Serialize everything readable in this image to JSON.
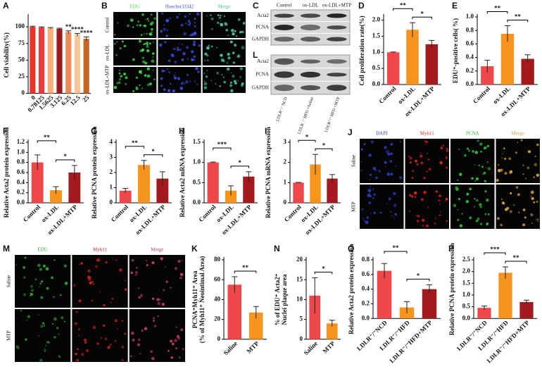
{
  "chart_data": [
    {
      "type": "bar",
      "label": "A",
      "ylabel": [
        "Cell viability(%)"
      ],
      "categories": [
        "0",
        "0.78125",
        "1.5625",
        "3.125",
        "6.25",
        "12.5",
        "25"
      ],
      "values": [
        100,
        99,
        98,
        97,
        92,
        88,
        82
      ],
      "errors": [
        1,
        1,
        1,
        1,
        2,
        2,
        3
      ],
      "colors": [
        "#e8332f",
        "#ee3a3a",
        "#f7b07a",
        "#9d1b1c",
        "#f08a55",
        "#f7c69a",
        "#c7641f"
      ],
      "ylim": [
        0,
        115
      ],
      "yticks": [
        0,
        25,
        50,
        75,
        100
      ],
      "annotations": [
        "**",
        "****",
        "****"
      ]
    },
    {
      "type": "bar",
      "label": "D",
      "ylabel": [
        "Cell proliferation rate(%)"
      ],
      "categories": [
        "Control",
        "ox-LDL",
        "ox-LDL+MTP"
      ],
      "values": [
        1.0,
        1.7,
        1.25
      ],
      "errors": [
        0.01,
        0.22,
        0.12
      ],
      "colors": [
        "#f0474a",
        "#f7941d",
        "#a31a1e"
      ],
      "ylim": [
        0,
        2.1
      ],
      "yticks": [
        {
          "value": 0,
          "label": "0.0"
        },
        0.5,
        {
          "value": 1,
          "label": "1.0"
        },
        1.5,
        {
          "value": 2,
          "label": "2.0"
        }
      ],
      "annotations": [
        "**",
        "*"
      ]
    },
    {
      "type": "bar",
      "label": "E",
      "ylabel": [
        "EDU⁺-positive cells( %)"
      ],
      "categories": [
        "Control",
        "ox-LDL",
        "ox-LDL+MTP"
      ],
      "values": [
        0.27,
        0.75,
        0.38
      ],
      "errors": [
        0.09,
        0.12,
        0.06
      ],
      "colors": [
        "#f0474a",
        "#f7941d",
        "#a31a1e"
      ],
      "ylim": [
        0,
        1.0
      ],
      "yticks": [
        {
          "value": 0,
          "label": "0.0"
        },
        0.2,
        0.4,
        0.6,
        0.8,
        {
          "value": 1,
          "label": "1.0"
        }
      ],
      "annotations": [
        "**",
        "**"
      ]
    },
    {
      "type": "bar",
      "label": "F",
      "ylabel": [
        "Relative Acta2 protein expression"
      ],
      "categories": [
        "Control",
        "ox-LDL",
        "ox-LDL+MTP"
      ],
      "values": [
        0.8,
        0.25,
        0.6
      ],
      "errors": [
        0.15,
        0.07,
        0.14
      ],
      "colors": [
        "#f0474a",
        "#f7941d",
        "#a31a1e"
      ],
      "ylim": [
        0,
        1.2
      ],
      "yticks": [
        {
          "value": 0,
          "label": "0.0"
        },
        0.2,
        0.4,
        0.6,
        0.8,
        {
          "value": 1,
          "label": "1.0"
        },
        1.2
      ],
      "annotations": [
        "**",
        "*"
      ]
    },
    {
      "type": "bar",
      "label": "G",
      "ylabel": [
        "Relative PCNA protein expression"
      ],
      "categories": [
        "Control",
        "ox-LDL",
        "ox-LDL+MTP"
      ],
      "values": [
        0.8,
        2.5,
        1.6
      ],
      "errors": [
        0.15,
        0.3,
        0.45
      ],
      "colors": [
        "#f0474a",
        "#f7941d",
        "#a31a1e"
      ],
      "ylim": [
        0,
        4
      ],
      "yticks": [
        0,
        1,
        2,
        3,
        4
      ],
      "annotations": [
        "**",
        "*"
      ]
    },
    {
      "type": "bar",
      "label": "H",
      "ylabel": [
        "Relative Acta2 mRNA expression"
      ],
      "categories": [
        "Control",
        "ox-LDL",
        "ox-LDL+MTP"
      ],
      "values": [
        1.0,
        0.3,
        0.65
      ],
      "errors": [
        0.01,
        0.12,
        0.12
      ],
      "colors": [
        "#f0474a",
        "#f7941d",
        "#a31a1e"
      ],
      "ylim": [
        0,
        1.5
      ],
      "yticks": [
        {
          "value": 0,
          "label": "0.0"
        },
        0.5,
        {
          "value": 1,
          "label": "1.0"
        },
        1.5
      ],
      "annotations": [
        "***",
        "*"
      ]
    },
    {
      "type": "bar",
      "label": "I",
      "ylabel": [
        "Relative PCNA mRNA expression"
      ],
      "categories": [
        "Control",
        "ox-LDL",
        "ox-LDL+MTP"
      ],
      "values": [
        1.0,
        1.9,
        1.2
      ],
      "errors": [
        0.01,
        0.5,
        0.2
      ],
      "colors": [
        "#f0474a",
        "#f7941d",
        "#a31a1e"
      ],
      "ylim": [
        0,
        3
      ],
      "yticks": [
        0,
        1,
        2,
        3
      ],
      "annotations": [
        "*",
        "*"
      ]
    },
    {
      "type": "bar",
      "label": "K",
      "ylabel": [
        "PCNA⁺Myh11⁺ Area",
        "(% of Myh11⁺ Neointimal Area)"
      ],
      "categories": [
        "Saline",
        "MTP"
      ],
      "values": [
        55,
        27
      ],
      "errors": [
        8,
        6
      ],
      "colors": [
        "#f0474a",
        "#f7941d"
      ],
      "ylim": [
        0,
        80
      ],
      "yticks": [
        0,
        20,
        40,
        60,
        80
      ],
      "annotations": [
        "**"
      ]
    },
    {
      "type": "bar",
      "label": "N",
      "ylabel": [
        "% of EDU⁺ Acta2⁺",
        "Nuclei plaque area"
      ],
      "categories": [
        "Saline",
        "MTP"
      ],
      "values": [
        11,
        4
      ],
      "errors": [
        4.5,
        0.8
      ],
      "colors": [
        "#f0474a",
        "#f7941d"
      ],
      "ylim": [
        0,
        20
      ],
      "yticks": [
        0,
        5,
        10,
        15,
        20
      ],
      "annotations": [
        "*"
      ]
    },
    {
      "type": "bar",
      "label": "O",
      "ylabel": [
        "Relative Acta2 protein expression"
      ],
      "categories": [
        "LDLR⁻/⁻NCD",
        "LDLR⁻/⁻HFD",
        "LDLR⁻/⁻HFD+MTP"
      ],
      "values": [
        0.65,
        0.15,
        0.4
      ],
      "errors": [
        0.1,
        0.08,
        0.06
      ],
      "colors": [
        "#f0474a",
        "#f7941d",
        "#a31a1e"
      ],
      "ylim": [
        0,
        0.8
      ],
      "yticks": [
        {
          "value": 0,
          "label": "0.0"
        },
        0.2,
        0.4,
        0.6,
        0.8
      ],
      "annotations": [
        "**",
        "*"
      ]
    },
    {
      "type": "bar",
      "label": "P",
      "ylabel": [
        "Relative PCNA protein expression"
      ],
      "categories": [
        "LDLR⁻/⁻NCD",
        "LDLR⁻/⁻HFD",
        "LDLR⁻/⁻HFD+MTP"
      ],
      "values": [
        0.45,
        1.95,
        0.7
      ],
      "errors": [
        0.08,
        0.25,
        0.08
      ],
      "colors": [
        "#f0474a",
        "#f7941d",
        "#a31a1e"
      ],
      "ylim": [
        0,
        2.5
      ],
      "yticks": [
        {
          "value": 0,
          "label": "0.0"
        },
        0.5,
        {
          "value": 1,
          "label": "1.0"
        },
        1.5,
        {
          "value": 2,
          "label": "2.0"
        },
        2.5
      ],
      "annotations": [
        "***",
        "**"
      ]
    }
  ],
  "images": [
    {
      "kind": "fluorescence",
      "label": "B",
      "columns": [
        "EDU",
        "Hoechst33342",
        "Merge"
      ],
      "rows": [
        "Control",
        "ox-LDL",
        "ox-LDL+MTP"
      ],
      "colors": [
        "#3fd94a",
        "#3a4fe0",
        "#4bc0a0"
      ]
    },
    {
      "kind": "blot",
      "label": "C",
      "columns": [
        "Control",
        "ox-LDL",
        "ox-LDL+MTP"
      ],
      "rows": [
        "Acta2",
        "PCNA",
        "GAPDH"
      ]
    },
    {
      "kind": "blot",
      "label": "L",
      "columns": [
        "LDLR⁻/⁻NCD",
        "LDLR⁻/⁻HFD +Saline",
        "LDLR⁻/⁻HFD +MTP"
      ],
      "rows": [
        "Acta2",
        "PCNA",
        "GAPDH"
      ]
    },
    {
      "kind": "fluorescence",
      "label": "J",
      "columns": [
        "DAPI",
        "Myh11",
        "PCNA",
        "Merge"
      ],
      "rows": [
        "Saline",
        "MTP"
      ],
      "colors": [
        "#2a3cc0",
        "#e02020",
        "#30c030",
        "#d0a040"
      ]
    },
    {
      "kind": "fluorescence",
      "label": "M",
      "columns": [
        "EDU",
        "Myh11",
        "Merge"
      ],
      "rows": [
        "Saline",
        "MTP"
      ],
      "colors": [
        "#30a030",
        "#d02020",
        "#c04060"
      ]
    }
  ]
}
